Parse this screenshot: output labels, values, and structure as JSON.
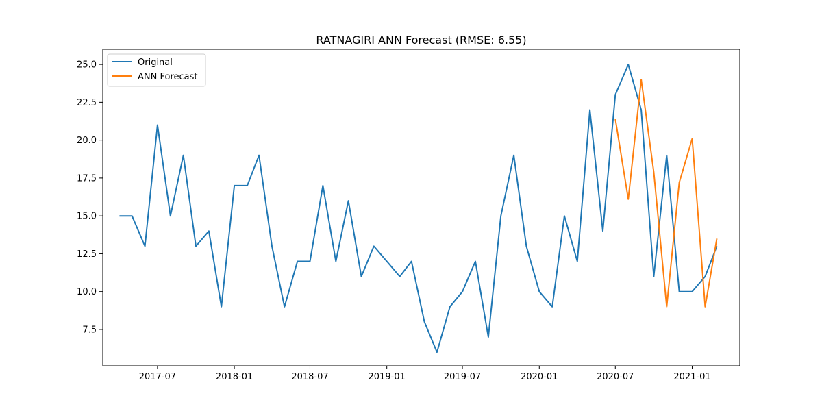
{
  "chart_data": {
    "type": "line",
    "title": "RATNAGIRI ANN Forecast (RMSE: 6.55)",
    "xlabel": "",
    "ylabel": "",
    "x_ticks": [
      "2017-07",
      "2018-01",
      "2018-07",
      "2019-01",
      "2019-07",
      "2020-01",
      "2020-07",
      "2021-01"
    ],
    "y_ticks": [
      "7.5",
      "10.0",
      "12.5",
      "15.0",
      "17.5",
      "20.0",
      "22.5",
      "25.0"
    ],
    "ylim": [
      5.1,
      26.0
    ],
    "xlim": [
      "2017-02-20",
      "2021-04-25"
    ],
    "legend_position": "upper left",
    "grid": false,
    "series": [
      {
        "name": "Original",
        "color": "#1f77b4",
        "points": [
          [
            "2017-04",
            15
          ],
          [
            "2017-05",
            15
          ],
          [
            "2017-06",
            13
          ],
          [
            "2017-07",
            21
          ],
          [
            "2017-08",
            15
          ],
          [
            "2017-09",
            19
          ],
          [
            "2017-10",
            13
          ],
          [
            "2017-11",
            14
          ],
          [
            "2017-12",
            9
          ],
          [
            "2018-01",
            17
          ],
          [
            "2018-02",
            17
          ],
          [
            "2018-03",
            19
          ],
          [
            "2018-04",
            13
          ],
          [
            "2018-05",
            9
          ],
          [
            "2018-06",
            12
          ],
          [
            "2018-07",
            12
          ],
          [
            "2018-08",
            17
          ],
          [
            "2018-09",
            12
          ],
          [
            "2018-10",
            16
          ],
          [
            "2018-11",
            11
          ],
          [
            "2018-12",
            13
          ],
          [
            "2019-01",
            12
          ],
          [
            "2019-02",
            11
          ],
          [
            "2019-03",
            12
          ],
          [
            "2019-04",
            8
          ],
          [
            "2019-05",
            6
          ],
          [
            "2019-06",
            9
          ],
          [
            "2019-07",
            10
          ],
          [
            "2019-08",
            12
          ],
          [
            "2019-09",
            7
          ],
          [
            "2019-10",
            15
          ],
          [
            "2019-11",
            19
          ],
          [
            "2019-12",
            13
          ],
          [
            "2020-01",
            10
          ],
          [
            "2020-02",
            9
          ],
          [
            "2020-03",
            15
          ],
          [
            "2020-04",
            12
          ],
          [
            "2020-05",
            22
          ],
          [
            "2020-06",
            14
          ],
          [
            "2020-07",
            23
          ],
          [
            "2020-08",
            25
          ],
          [
            "2020-09",
            22
          ],
          [
            "2020-10",
            11
          ],
          [
            "2020-11",
            19
          ],
          [
            "2020-12",
            10
          ],
          [
            "2021-01",
            10
          ],
          [
            "2021-02",
            11
          ],
          [
            "2021-03",
            13
          ]
        ]
      },
      {
        "name": "ANN Forecast",
        "color": "#ff7f0e",
        "points": [
          [
            "2020-07",
            21.4
          ],
          [
            "2020-08",
            16.1
          ],
          [
            "2020-09",
            24.0
          ],
          [
            "2020-10",
            17.9
          ],
          [
            "2020-11",
            9.0
          ],
          [
            "2020-12",
            17.2
          ],
          [
            "2021-01",
            20.1
          ],
          [
            "2021-02",
            9.0
          ],
          [
            "2021-03",
            13.5
          ]
        ]
      }
    ]
  }
}
